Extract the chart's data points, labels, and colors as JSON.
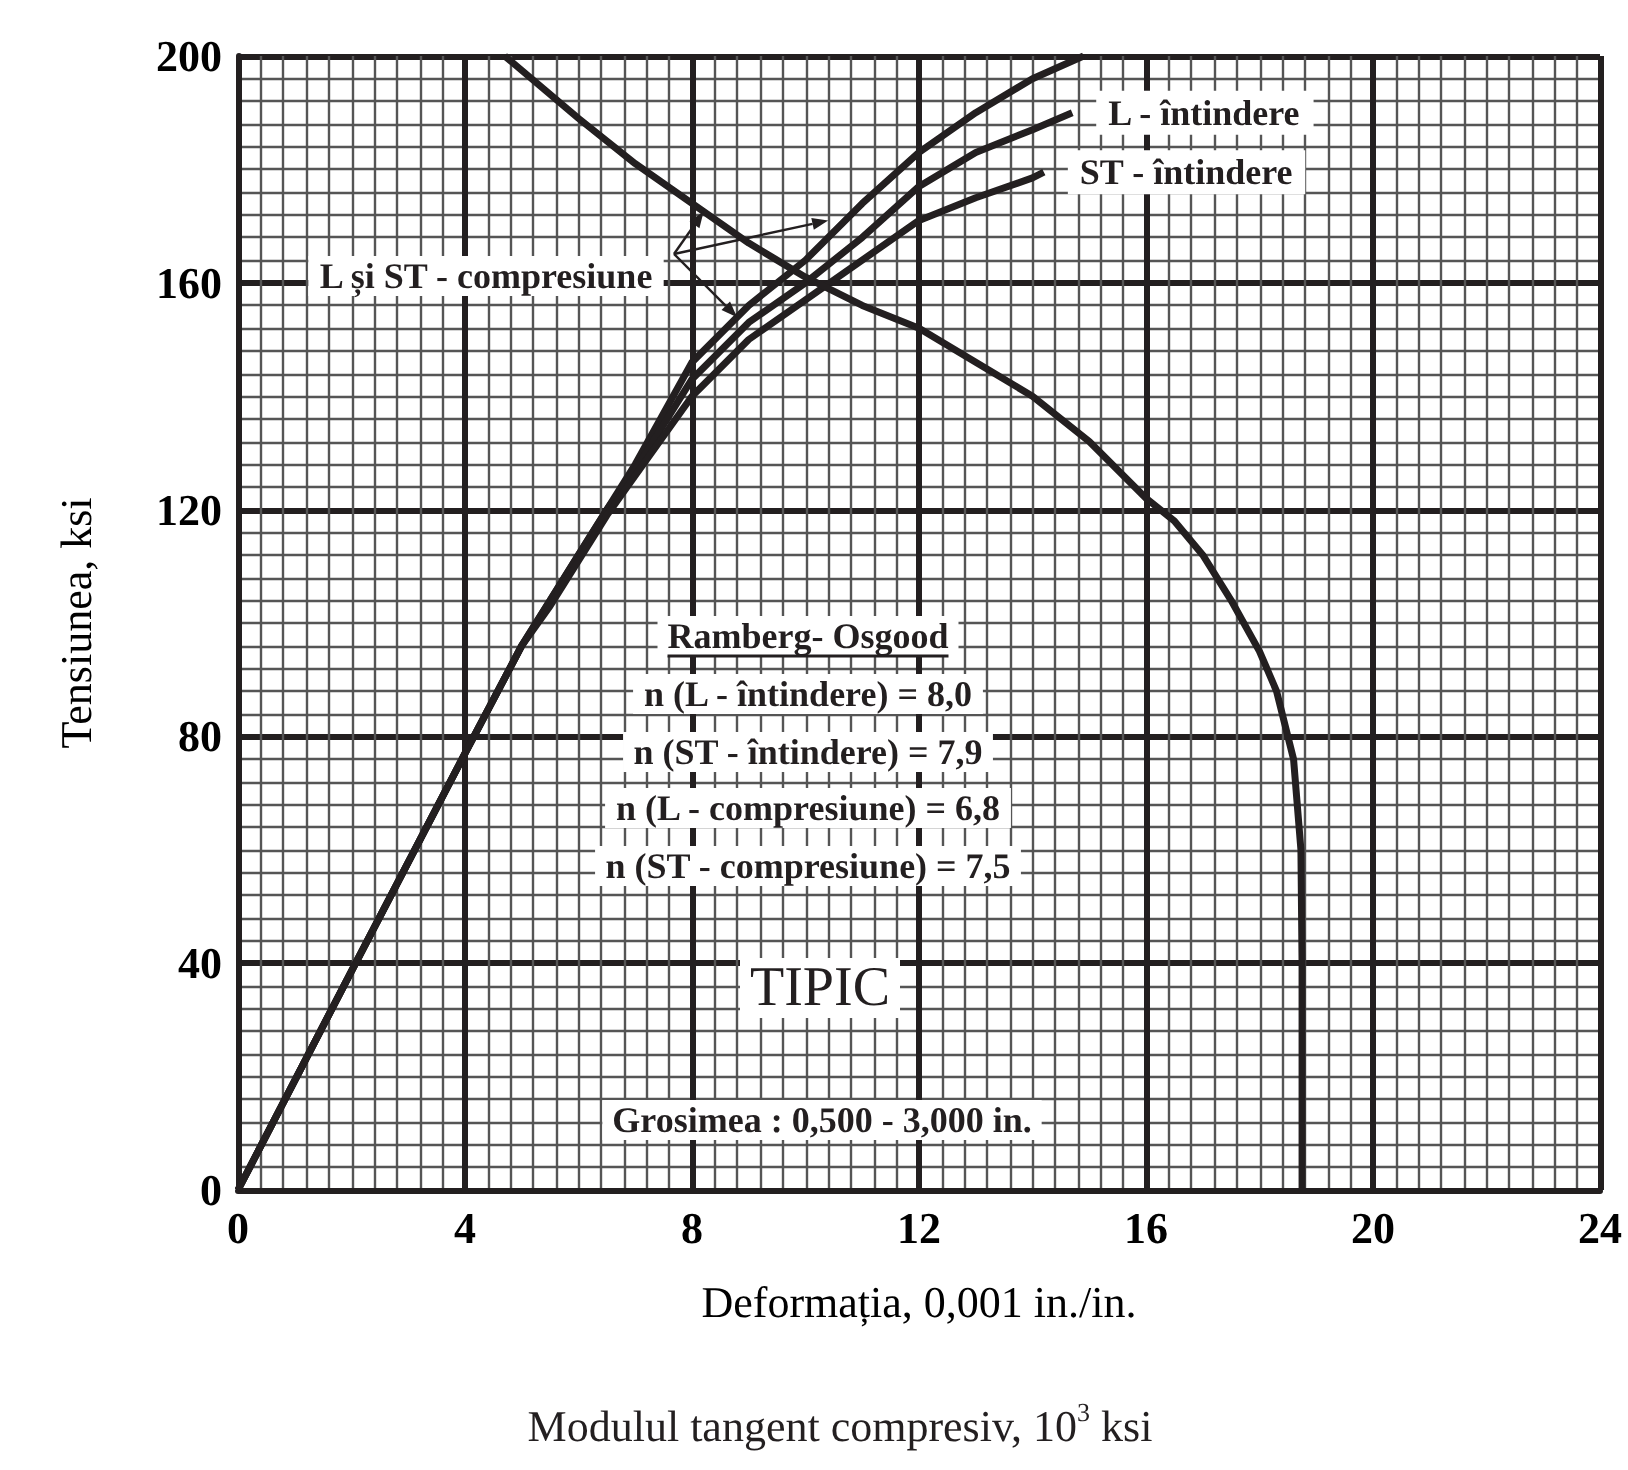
{
  "chart_data": {
    "type": "line",
    "xlabel": "Deformația, 0,001 in./in.",
    "ylabel": "Tensiunea, ksi",
    "annotations": [
      {
        "text": "L și ST - compresiune",
        "x": 10.4,
        "y": 171
      },
      "Ramberg- Osgood",
      "n (L - întindere) = 8,0",
      "n (ST - întindere) = 7,9",
      "n (L - compresiune) = 6,8",
      "n (ST - compresiune) = 7,5",
      "TIPIC",
      "Grosimea : 0,500 - 3,000 in.",
      "Modulul tangent compresiv, 10$^{3}$ ksi"
    ],
    "series": [
      {
        "color": "#231f20",
        "x": [
          0,
          2,
          4,
          5,
          5.5,
          6,
          6.5,
          7,
          8,
          9,
          10,
          11,
          12,
          13,
          14,
          14.9
        ],
        "values": [
          0,
          38.6,
          77,
          96,
          104,
          112,
          120,
          128,
          146,
          156,
          164,
          174,
          183,
          190,
          196,
          200
        ]
      },
      {
        "name": "L - întindere",
        "color": "#231f20",
        "x": [
          0,
          2,
          4,
          5,
          5.5,
          6,
          6.5,
          7,
          8,
          9,
          10,
          11,
          12,
          13,
          14,
          14.7
        ],
        "values": [
          0,
          38.6,
          77,
          96,
          104,
          112,
          120,
          127,
          143,
          153,
          160,
          168,
          177,
          183,
          187,
          190
        ]
      },
      {
        "name": "ST - întindere",
        "color": "#231f20",
        "x": [
          0,
          2,
          4,
          5,
          5.5,
          6,
          6.5,
          7,
          8,
          9,
          10,
          11,
          12,
          13,
          14,
          14.2
        ],
        "values": [
          0,
          38.6,
          77,
          96,
          103,
          111,
          119,
          126,
          140,
          150,
          157,
          164,
          171,
          175,
          178.5,
          179.5
        ]
      },
      {
        "color": "#231f20",
        "x": [
          4.7,
          6,
          7,
          8,
          9,
          10,
          11,
          12,
          13,
          14,
          15,
          16,
          16.5,
          17,
          17.5,
          18,
          18.3,
          18.6,
          18.73,
          18.75,
          18.75
        ],
        "values": [
          200,
          189,
          181,
          174,
          167,
          161,
          156,
          152,
          146,
          140,
          132,
          122,
          118,
          112,
          104,
          95,
          88,
          76,
          60,
          40,
          0
        ]
      }
    ],
    "xlim": [
      0,
      24
    ],
    "xticks": [
      0,
      4,
      8,
      12,
      16,
      20,
      24
    ],
    "ylim": [
      0,
      200
    ],
    "yticks": [
      0,
      40,
      80,
      120,
      160,
      200
    ],
    "grid": true,
    "legend": false,
    "marker": "none"
  }
}
